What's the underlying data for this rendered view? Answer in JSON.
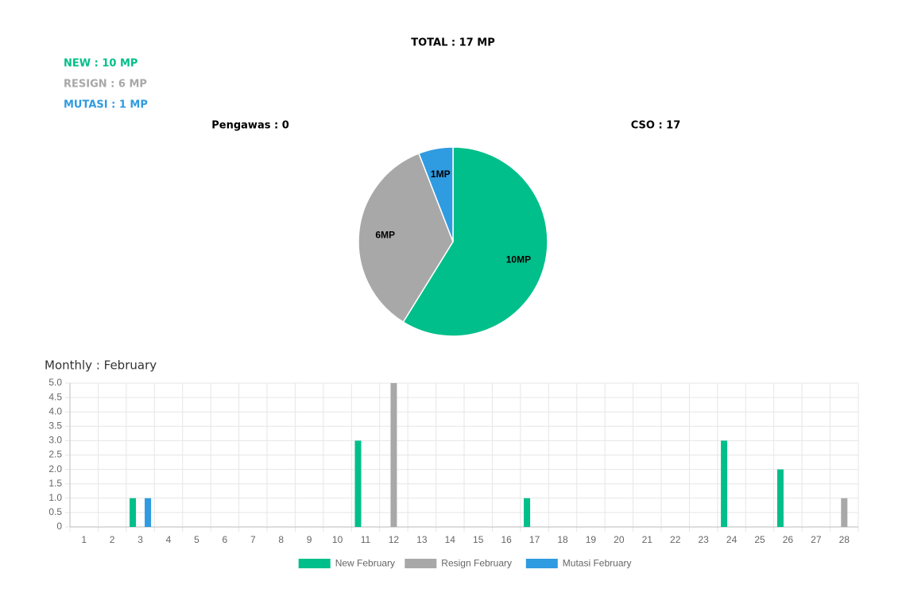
{
  "header": {
    "total": "TOTAL : 17 MP",
    "summary": [
      "NEW : 10 MP",
      "RESIGN : 6 MP",
      "MUTASI : 1 MP"
    ],
    "groups": [
      "Pengawas : 0",
      "CSO : 17"
    ]
  },
  "chart_data": [
    {
      "type": "pie",
      "values": [
        10,
        6,
        1
      ],
      "value_labels": [
        "10MP",
        "6MP",
        "1MP"
      ],
      "colors": [
        "#00bf8a",
        "#a8a8a8",
        "#2f9be0"
      ]
    },
    {
      "type": "bar",
      "title": "Monthly : February",
      "categories": [
        "1",
        "2",
        "3",
        "4",
        "5",
        "6",
        "7",
        "8",
        "9",
        "10",
        "11",
        "12",
        "13",
        "14",
        "15",
        "16",
        "17",
        "18",
        "19",
        "20",
        "21",
        "22",
        "23",
        "24",
        "25",
        "26",
        "27",
        "28"
      ],
      "series": [
        {
          "name": "New February",
          "color": "#00bf8a",
          "values": [
            0,
            0,
            1,
            0,
            0,
            0,
            0,
            0,
            0,
            0,
            3,
            0,
            0,
            0,
            0,
            0,
            1,
            0,
            0,
            0,
            0,
            0,
            0,
            3,
            0,
            2,
            0,
            0
          ]
        },
        {
          "name": "Resign February",
          "color": "#a8a8a8",
          "values": [
            0,
            0,
            0,
            0,
            0,
            0,
            0,
            0,
            0,
            0,
            0,
            5,
            0,
            0,
            0,
            0,
            0,
            0,
            0,
            0,
            0,
            0,
            0,
            0,
            0,
            0,
            0,
            1
          ]
        },
        {
          "name": "Mutasi February",
          "color": "#2f9be0",
          "values": [
            0,
            0,
            1,
            0,
            0,
            0,
            0,
            0,
            0,
            0,
            0,
            0,
            0,
            0,
            0,
            0,
            0,
            0,
            0,
            0,
            0,
            0,
            0,
            0,
            0,
            0,
            0,
            0
          ]
        }
      ],
      "ylim": [
        0,
        5
      ],
      "yticks": [
        0,
        0.5,
        {
          "value": 1,
          "label": "1.0"
        },
        1.5,
        {
          "value": 2,
          "label": "2.0"
        },
        2.5,
        {
          "value": 3,
          "label": "3.0"
        },
        3.5,
        {
          "value": 4,
          "label": "4.0"
        },
        4.5,
        {
          "value": 5,
          "label": "5.0"
        }
      ],
      "grid": true
    }
  ]
}
